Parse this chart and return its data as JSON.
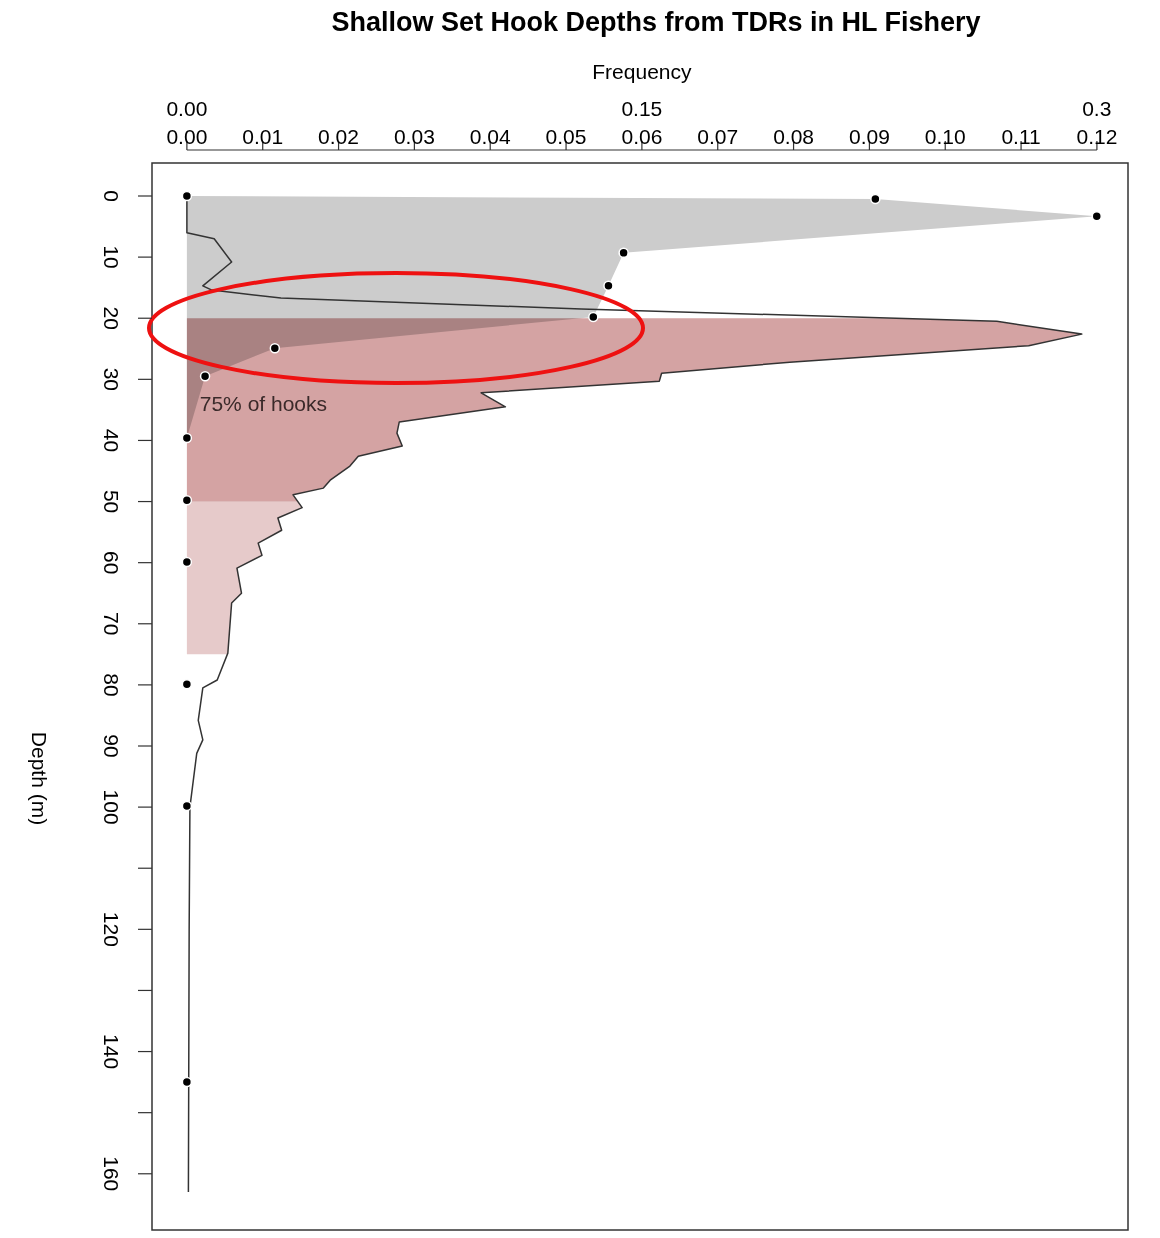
{
  "chart_data": {
    "type": "line",
    "orientation": "horizontal",
    "title": "Shallow Set Hook Depths from TDRs in HL Fishery",
    "xlabel": "Frequency",
    "ylabel": "Depth (m)",
    "xlim": [
      -0.0046,
      0.1241
    ],
    "xticks": [
      {
        "value": 0,
        "label": "0.00"
      },
      0.01,
      0.02,
      0.03,
      0.04,
      0.05,
      0.06,
      0.07,
      0.08,
      0.09,
      {
        "value": 0.1,
        "label": "0.10"
      },
      0.11,
      0.12
    ],
    "x2lim": [
      -0.0115,
      0.3103
    ],
    "x2ticks": [
      {
        "value": 0,
        "label": "0.00"
      },
      0.15,
      0.3
    ],
    "ylim": [
      169.2,
      -5.4
    ],
    "yticks": [
      0,
      10,
      20,
      30,
      40,
      50,
      60,
      70,
      80,
      90,
      100,
      {
        "value": 110,
        "label": null
      },
      120,
      {
        "value": 130,
        "label": null
      },
      140,
      {
        "value": 150,
        "label": null
      },
      160
    ],
    "series": [
      {
        "type": "area",
        "color": "#d4a3a3",
        "x": [
          20,
          20.5,
          22.6,
          24.5,
          27.2,
          29,
          30.3,
          32.2,
          34.5,
          37,
          38.8,
          40.9,
          42.6,
          44.2,
          46.5,
          47.8,
          48.9,
          50
        ],
        "values": [
          0.0931,
          0.1068,
          0.118,
          0.111,
          0.0795,
          0.0626,
          0.0623,
          0.0388,
          0.042,
          0.028,
          0.0277,
          0.0284,
          0.0226,
          0.0215,
          0.0189,
          0.018,
          0.014,
          0.0146
        ]
      },
      {
        "type": "area",
        "color": "#e6caca",
        "x": [
          50,
          51,
          52.7,
          54.7,
          56.8,
          58.8,
          60.9,
          65,
          66.6,
          74.8,
          75
        ],
        "values": [
          0.0146,
          0.0152,
          0.012,
          0.0125,
          0.0094,
          0.0099,
          0.0066,
          0.0072,
          0.0059,
          0.0054,
          0.0054
        ]
      },
      {
        "type": "area",
        "axis": "x2",
        "color": "#cccccc",
        "x": [
          0,
          0.5,
          3.3,
          9.3,
          14.7,
          19.8,
          24.9,
          29.5,
          39.6
        ],
        "values": [
          0,
          0.227,
          0.3,
          0.144,
          0.139,
          0.134,
          0.029,
          0.006,
          0
        ]
      },
      {
        "type": "line",
        "color": "#333333",
        "x": [
          0,
          6,
          7,
          10.8,
          14.7,
          15.4,
          16.7,
          18.5,
          20.5,
          22.6,
          24.5,
          27.2,
          29,
          30.3,
          32.2,
          34.5,
          37,
          38.8,
          40.9,
          42.6,
          44.2,
          46.5,
          47.8,
          48.9,
          51,
          52.7,
          54.7,
          56.8,
          58.8,
          60.9,
          65,
          66.6,
          74.8,
          79.2,
          80.5,
          85.8,
          89,
          91.2,
          100,
          120,
          163
        ],
        "values": [
          0,
          0,
          0.0036,
          0.0059,
          0.0021,
          0.0033,
          0.0124,
          0.052,
          0.1068,
          0.118,
          0.111,
          0.0795,
          0.0626,
          0.0623,
          0.0388,
          0.042,
          0.028,
          0.0277,
          0.0284,
          0.0226,
          0.0215,
          0.0189,
          0.018,
          0.014,
          0.0152,
          0.012,
          0.0125,
          0.0094,
          0.0099,
          0.0066,
          0.0072,
          0.0059,
          0.0054,
          0.004,
          0.0021,
          0.0015,
          0.0021,
          0.0013,
          0.0004,
          0.0003,
          0.0002
        ]
      },
      {
        "type": "scatter",
        "axis": "x2",
        "color": "#000000",
        "marker": "circle",
        "x": [
          0,
          0.5,
          3.3,
          9.3,
          14.7,
          19.8,
          24.9,
          29.5,
          39.6,
          49.8,
          59.9,
          79.9,
          99.8,
          145
        ],
        "values": [
          0,
          0.227,
          0.3,
          0.144,
          0.139,
          0.134,
          0.029,
          0.006,
          0,
          0,
          0,
          0,
          0,
          0
        ]
      }
    ],
    "annotations": [
      {
        "text": "75% of hooks",
        "x": 0.0017,
        "y": 34
      }
    ]
  }
}
